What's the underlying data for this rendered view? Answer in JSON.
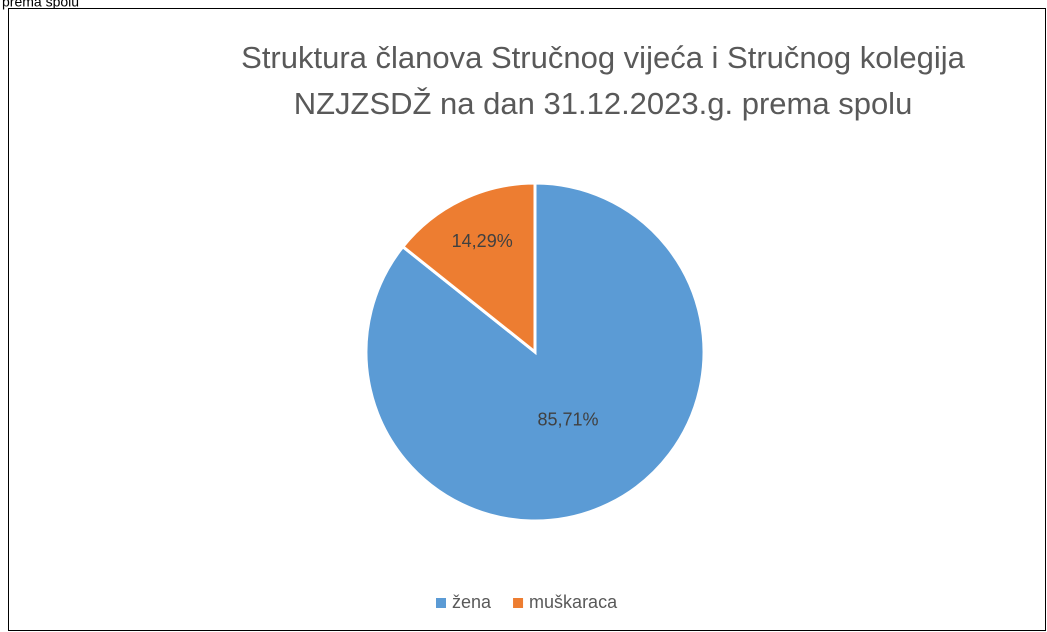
{
  "caption": "prema spolu",
  "chart_data": {
    "type": "pie",
    "title": [
      "Struktura članova Stručnog vijeća i Stručnog kolegija",
      "NZJZSDŽ na dan 31.12.2023.g. prema spolu"
    ],
    "categories": [
      "žena",
      "muškaraca"
    ],
    "values": [
      85.71,
      14.29
    ],
    "value_labels": [
      "85,71%",
      "14,29%"
    ],
    "colors": [
      "#5b9bd5",
      "#ed7d31"
    ],
    "legend": "bottom"
  }
}
